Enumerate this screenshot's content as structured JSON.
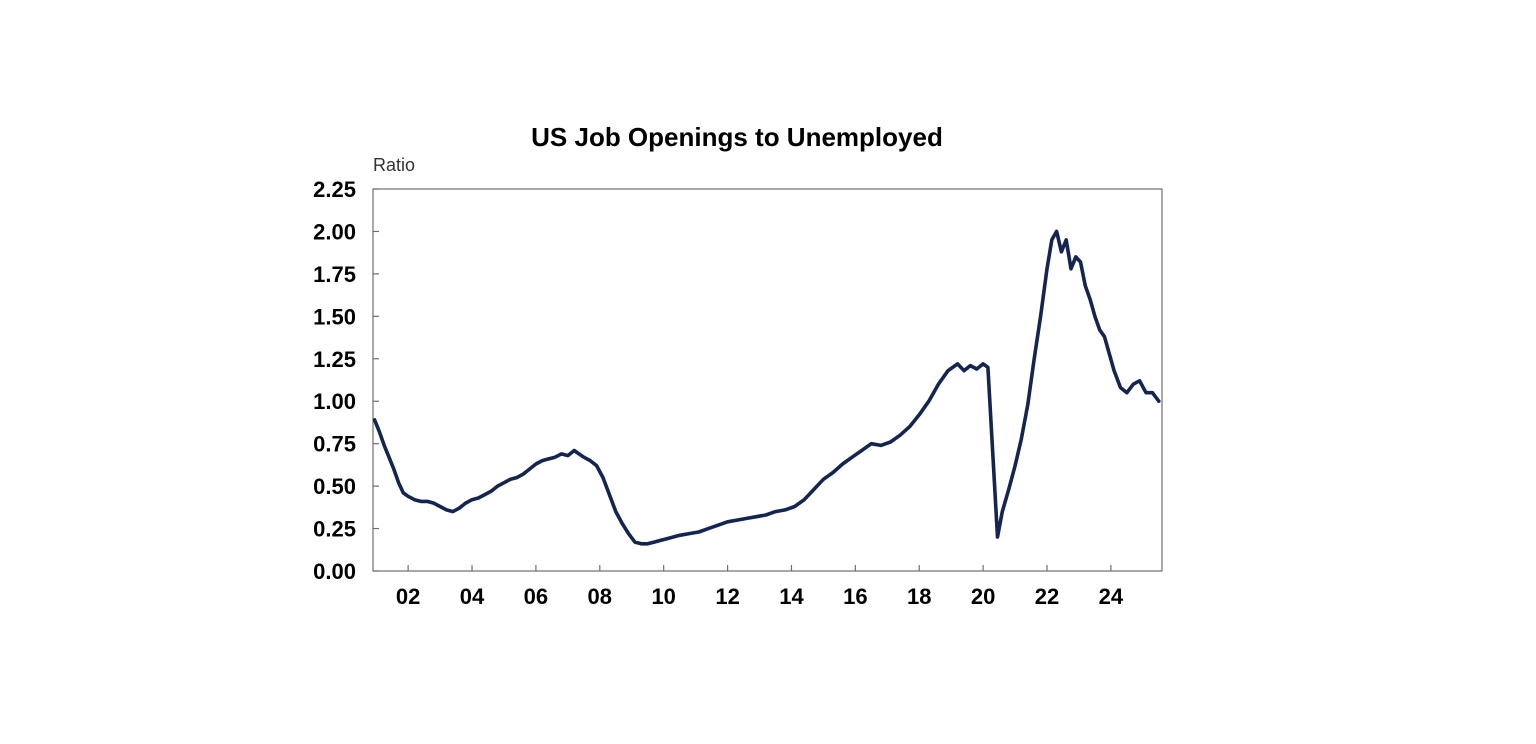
{
  "chart_data": {
    "type": "line",
    "title": "US Job Openings to Unemployed",
    "ylabel": "Ratio",
    "xlabel": "",
    "x_unit": "year",
    "xlim": [
      2000.9,
      2025.6
    ],
    "ylim": [
      0,
      2.25
    ],
    "y_ticks": [
      0,
      0.25,
      0.5,
      0.75,
      1.0,
      1.25,
      1.5,
      1.75,
      2.0,
      2.25
    ],
    "y_tick_labels": [
      "0.00",
      "0.25",
      "0.50",
      "0.75",
      "1.00",
      "1.25",
      "1.50",
      "1.75",
      "2.00",
      "2.25"
    ],
    "x_ticks": [
      2002,
      2004,
      2006,
      2008,
      2010,
      2012,
      2014,
      2016,
      2018,
      2020,
      2022,
      2024
    ],
    "x_tick_labels": [
      "02",
      "04",
      "06",
      "08",
      "10",
      "12",
      "14",
      "16",
      "18",
      "20",
      "22",
      "24"
    ],
    "grid": false,
    "legend": "none",
    "line_color": "#14254f",
    "series": [
      {
        "x": [
          2000.95,
          2001.1,
          2001.25,
          2001.4,
          2001.55,
          2001.7,
          2001.85,
          2002.0,
          2002.2,
          2002.4,
          2002.6,
          2002.8,
          2003.0,
          2003.2,
          2003.4,
          2003.6,
          2003.8,
          2004.0,
          2004.2,
          2004.4,
          2004.6,
          2004.8,
          2005.0,
          2005.2,
          2005.4,
          2005.6,
          2005.8,
          2006.0,
          2006.2,
          2006.4,
          2006.6,
          2006.8,
          2007.0,
          2007.2,
          2007.35,
          2007.5,
          2007.7,
          2007.9,
          2008.1,
          2008.3,
          2008.5,
          2008.7,
          2008.9,
          2009.1,
          2009.3,
          2009.5,
          2009.7,
          2009.9,
          2010.1,
          2010.3,
          2010.5,
          2010.8,
          2011.1,
          2011.4,
          2011.7,
          2012.0,
          2012.3,
          2012.6,
          2012.9,
          2013.2,
          2013.5,
          2013.8,
          2014.1,
          2014.4,
          2014.7,
          2015.0,
          2015.3,
          2015.6,
          2015.9,
          2016.2,
          2016.5,
          2016.8,
          2017.1,
          2017.4,
          2017.7,
          2018.0,
          2018.3,
          2018.6,
          2018.9,
          2019.2,
          2019.4,
          2019.6,
          2019.8,
          2020.0,
          2020.15,
          2020.3,
          2020.45,
          2020.6,
          2020.8,
          2021.0,
          2021.2,
          2021.4,
          2021.6,
          2021.8,
          2022.0,
          2022.15,
          2022.3,
          2022.45,
          2022.6,
          2022.75,
          2022.9,
          2023.05,
          2023.2,
          2023.35,
          2023.5,
          2023.65,
          2023.8,
          2023.95,
          2024.1,
          2024.3,
          2024.5,
          2024.7,
          2024.9,
          2025.1,
          2025.3,
          2025.5
        ],
        "values": [
          0.89,
          0.82,
          0.74,
          0.67,
          0.6,
          0.52,
          0.46,
          0.44,
          0.42,
          0.41,
          0.41,
          0.4,
          0.38,
          0.36,
          0.35,
          0.37,
          0.4,
          0.42,
          0.43,
          0.45,
          0.47,
          0.5,
          0.52,
          0.54,
          0.55,
          0.57,
          0.6,
          0.63,
          0.65,
          0.66,
          0.67,
          0.69,
          0.68,
          0.71,
          0.69,
          0.67,
          0.65,
          0.62,
          0.55,
          0.45,
          0.35,
          0.28,
          0.22,
          0.17,
          0.16,
          0.16,
          0.17,
          0.18,
          0.19,
          0.2,
          0.21,
          0.22,
          0.23,
          0.25,
          0.27,
          0.29,
          0.3,
          0.31,
          0.32,
          0.33,
          0.35,
          0.36,
          0.38,
          0.42,
          0.48,
          0.54,
          0.58,
          0.63,
          0.67,
          0.71,
          0.75,
          0.74,
          0.76,
          0.8,
          0.85,
          0.92,
          1.0,
          1.1,
          1.18,
          1.22,
          1.18,
          1.21,
          1.19,
          1.22,
          1.2,
          0.7,
          0.2,
          0.35,
          0.48,
          0.62,
          0.78,
          0.98,
          1.25,
          1.5,
          1.78,
          1.95,
          2.0,
          1.88,
          1.95,
          1.78,
          1.85,
          1.82,
          1.68,
          1.6,
          1.5,
          1.42,
          1.38,
          1.28,
          1.18,
          1.08,
          1.05,
          1.1,
          1.12,
          1.05,
          1.05,
          1.0
        ]
      }
    ]
  }
}
